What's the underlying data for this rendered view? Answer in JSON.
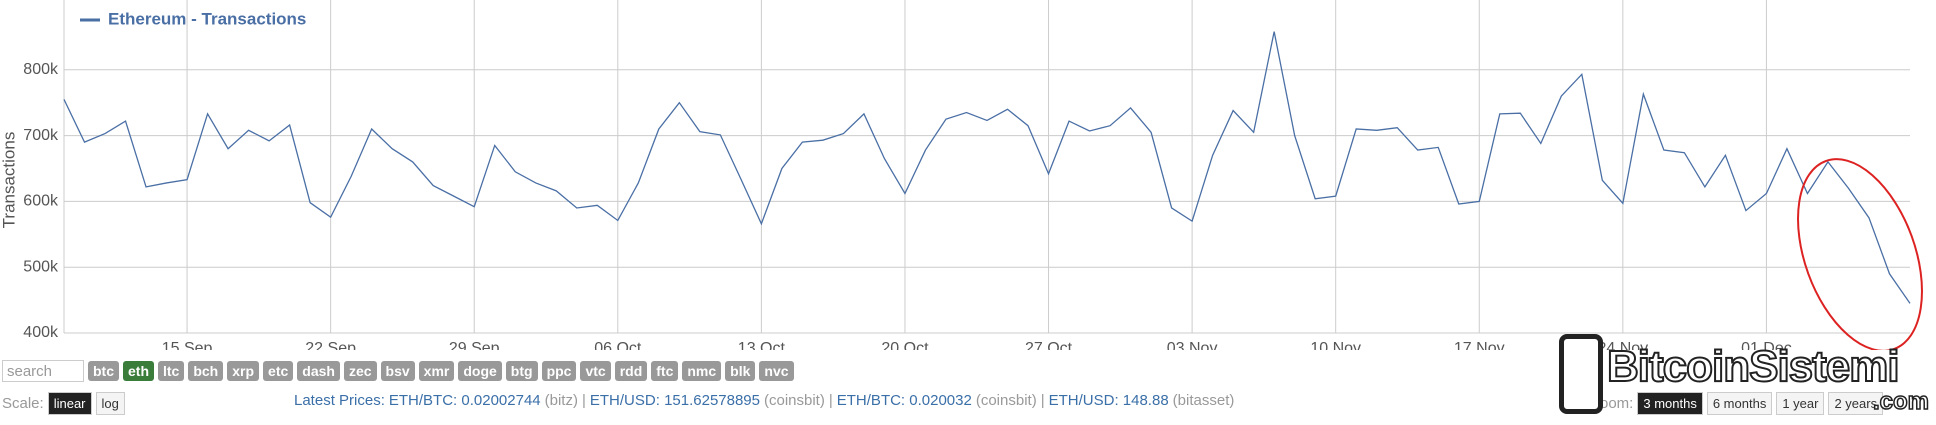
{
  "chart_data": {
    "type": "line",
    "legend": "Ethereum - Transactions",
    "ylabel": "Transactions",
    "x": [
      "09 Sep",
      "10 Sep",
      "11 Sep",
      "12 Sep",
      "13 Sep",
      "14 Sep",
      "15 Sep",
      "16 Sep",
      "17 Sep",
      "18 Sep",
      "19 Sep",
      "20 Sep",
      "21 Sep",
      "22 Sep",
      "23 Sep",
      "24 Sep",
      "25 Sep",
      "26 Sep",
      "27 Sep",
      "28 Sep",
      "29 Sep",
      "30 Sep",
      "01 Oct",
      "02 Oct",
      "03 Oct",
      "04 Oct",
      "05 Oct",
      "06 Oct",
      "07 Oct",
      "08 Oct",
      "09 Oct",
      "10 Oct",
      "11 Oct",
      "12 Oct",
      "13 Oct",
      "14 Oct",
      "15 Oct",
      "16 Oct",
      "17 Oct",
      "18 Oct",
      "19 Oct",
      "20 Oct",
      "21 Oct",
      "22 Oct",
      "23 Oct",
      "24 Oct",
      "25 Oct",
      "26 Oct",
      "27 Oct",
      "28 Oct",
      "29 Oct",
      "30 Oct",
      "31 Oct",
      "01 Nov",
      "02 Nov",
      "03 Nov",
      "04 Nov",
      "05 Nov",
      "06 Nov",
      "07 Nov",
      "08 Nov",
      "09 Nov",
      "10 Nov",
      "11 Nov",
      "12 Nov",
      "13 Nov",
      "14 Nov",
      "15 Nov",
      "16 Nov",
      "17 Nov",
      "18 Nov",
      "19 Nov",
      "20 Nov",
      "21 Nov",
      "22 Nov",
      "23 Nov",
      "24 Nov",
      "25 Nov",
      "26 Nov",
      "27 Nov",
      "28 Nov",
      "29 Nov",
      "30 Nov",
      "01 Dec",
      "02 Dec",
      "03 Dec",
      "04 Dec",
      "05 Dec",
      "06 Dec",
      "07 Dec",
      "08 Dec"
    ],
    "series": [
      {
        "name": "Ethereum - Transactions",
        "color": "#4a6fa5",
        "values": [
          755000,
          690000,
          703000,
          722000,
          622000,
          628000,
          633000,
          733000,
          680000,
          708000,
          692000,
          716000,
          598000,
          576000,
          638000,
          710000,
          680000,
          660000,
          624000,
          608000,
          592000,
          685000,
          645000,
          628000,
          616000,
          590000,
          594000,
          571000,
          628000,
          710000,
          750000,
          706000,
          701000,
          634000,
          566000,
          650000,
          690000,
          693000,
          703000,
          733000,
          665000,
          612000,
          678000,
          725000,
          735000,
          723000,
          740000,
          715000,
          642000,
          722000,
          707000,
          715000,
          742000,
          705000,
          590000,
          570000,
          670000,
          738000,
          705000,
          858000,
          700000,
          604000,
          608000,
          710000,
          708000,
          712000,
          678000,
          682000,
          596000,
          600000,
          733000,
          734000,
          688000,
          760000,
          793000,
          632000,
          597000,
          763000,
          678000,
          674000,
          622000,
          670000,
          586000,
          612000,
          680000,
          612000,
          660000,
          620000,
          575000,
          490000,
          445000
        ]
      }
    ],
    "xticks": [
      "15 Sep",
      "22 Sep",
      "29 Sep",
      "06 Oct",
      "13 Oct",
      "20 Oct",
      "27 Oct",
      "03 Nov",
      "10 Nov",
      "17 Nov",
      "24 Nov",
      "01 Dec"
    ],
    "ylim": [
      400000,
      906000
    ],
    "yticks": [
      {
        "value": 400000,
        "label": "400k"
      },
      {
        "value": 500000,
        "label": "500k"
      },
      {
        "value": 600000,
        "label": "600k"
      },
      {
        "value": 700000,
        "label": "700k"
      },
      {
        "value": 800000,
        "label": "800k"
      }
    ],
    "grid": true
  },
  "controls": {
    "search_placeholder": "search",
    "coins": [
      "btc",
      "eth",
      "ltc",
      "bch",
      "xrp",
      "etc",
      "dash",
      "zec",
      "bsv",
      "xmr",
      "doge",
      "btg",
      "ppc",
      "vtc",
      "rdd",
      "ftc",
      "nmc",
      "blk",
      "nvc"
    ],
    "active_coin": "eth",
    "scale_label": "Scale:",
    "scales": [
      "linear",
      "log"
    ],
    "prices_label": "Latest Prices:",
    "separator": "|",
    "prices": [
      {
        "pair": "ETH/BTC: 0.02002744",
        "source": "(bitz)"
      },
      {
        "pair": "ETH/USD: 151.62578895",
        "source": "(coinsbit)"
      },
      {
        "pair": "ETH/BTC: 0.020032",
        "source": "(coinsbit)"
      },
      {
        "pair": "ETH/USD: 148.88",
        "source": "(bitasset)"
      }
    ],
    "zoom_label": "oom:",
    "zooms": [
      "3 months",
      "6 months",
      "1 year",
      "2 years"
    ]
  },
  "watermark": {
    "name": "BitcoinSistemi",
    "domain": ".com"
  }
}
